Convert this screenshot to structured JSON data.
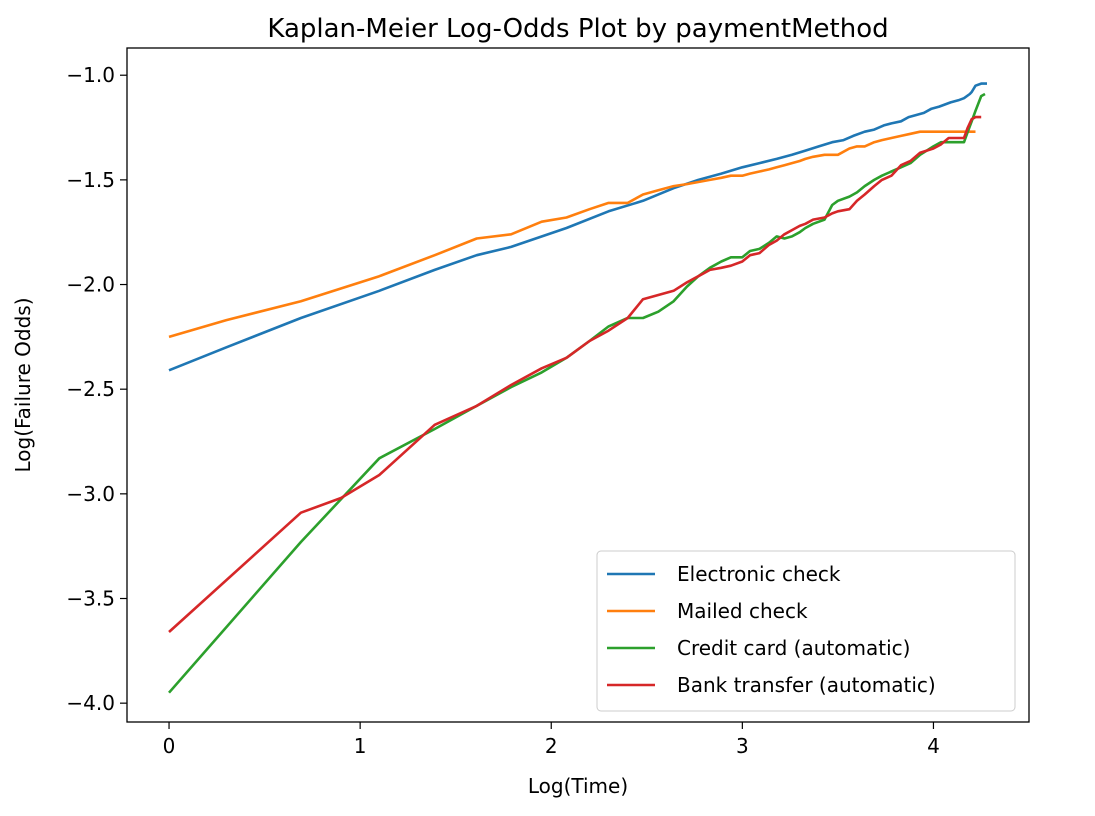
{
  "chart_data": {
    "type": "line",
    "title": "Kaplan-Meier Log-Odds Plot by paymentMethod",
    "xlabel": "Log(Time)",
    "ylabel": "Log(Failure Odds)",
    "xlim": [
      -0.22,
      4.5
    ],
    "ylim": [
      -4.09,
      -0.87
    ],
    "xticks": [
      0,
      1,
      2,
      3,
      4
    ],
    "xtick_labels": [
      "0",
      "1",
      "2",
      "3",
      "4"
    ],
    "yticks": [
      -1.0,
      -1.5,
      -2.0,
      -2.5,
      -3.0,
      -3.5,
      -4.0
    ],
    "ytick_labels": [
      "−1.0",
      "−1.5",
      "−2.0",
      "−2.5",
      "−3.0",
      "−3.5",
      "−4.0"
    ],
    "grid": false,
    "legend_position": "lower right",
    "series": [
      {
        "name": "Electronic check",
        "color": "#1f77b4",
        "x": [
          0,
          0.3,
          0.69,
          1.1,
          1.39,
          1.61,
          1.79,
          2.08,
          2.3,
          2.48,
          2.64,
          2.77,
          2.89,
          3.0,
          3.09,
          3.18,
          3.26,
          3.33,
          3.4,
          3.47,
          3.53,
          3.58,
          3.64,
          3.69,
          3.74,
          3.78,
          3.83,
          3.87,
          3.91,
          3.95,
          3.99,
          4.03,
          4.06,
          4.09,
          4.13,
          4.16,
          4.19,
          4.2,
          4.22,
          4.25,
          4.28
        ],
        "y": [
          -2.41,
          -2.3,
          -2.16,
          -2.03,
          -1.93,
          -1.86,
          -1.82,
          -1.73,
          -1.65,
          -1.6,
          -1.54,
          -1.5,
          -1.47,
          -1.44,
          -1.42,
          -1.4,
          -1.38,
          -1.36,
          -1.34,
          -1.32,
          -1.31,
          -1.29,
          -1.27,
          -1.26,
          -1.24,
          -1.23,
          -1.22,
          -1.2,
          -1.19,
          -1.18,
          -1.16,
          -1.15,
          -1.14,
          -1.13,
          -1.12,
          -1.11,
          -1.09,
          -1.08,
          -1.05,
          -1.04,
          -1.04
        ]
      },
      {
        "name": "Mailed check",
        "color": "#ff7f0e",
        "x": [
          0,
          0.3,
          0.69,
          1.1,
          1.39,
          1.61,
          1.79,
          1.95,
          2.08,
          2.2,
          2.3,
          2.4,
          2.48,
          2.56,
          2.64,
          2.71,
          2.77,
          2.83,
          2.89,
          2.94,
          3.0,
          3.04,
          3.09,
          3.14,
          3.18,
          3.22,
          3.26,
          3.3,
          3.33,
          3.37,
          3.43,
          3.5,
          3.56,
          3.6,
          3.64,
          3.69,
          3.73,
          3.78,
          3.83,
          3.88,
          3.93,
          4.0,
          4.06,
          4.12,
          4.18,
          4.2,
          4.22
        ],
        "y": [
          -2.25,
          -2.17,
          -2.08,
          -1.96,
          -1.86,
          -1.78,
          -1.76,
          -1.7,
          -1.68,
          -1.64,
          -1.61,
          -1.61,
          -1.57,
          -1.55,
          -1.53,
          -1.52,
          -1.51,
          -1.5,
          -1.49,
          -1.48,
          -1.48,
          -1.47,
          -1.46,
          -1.45,
          -1.44,
          -1.43,
          -1.42,
          -1.41,
          -1.4,
          -1.39,
          -1.38,
          -1.38,
          -1.35,
          -1.34,
          -1.34,
          -1.32,
          -1.31,
          -1.3,
          -1.29,
          -1.28,
          -1.27,
          -1.27,
          -1.27,
          -1.27,
          -1.27,
          -1.27,
          -1.27
        ]
      },
      {
        "name": "Credit card (automatic)",
        "color": "#2ca02c",
        "x": [
          0,
          0.69,
          1.1,
          1.39,
          1.61,
          1.79,
          1.95,
          2.08,
          2.2,
          2.3,
          2.4,
          2.48,
          2.56,
          2.64,
          2.71,
          2.77,
          2.83,
          2.89,
          2.94,
          3.0,
          3.04,
          3.09,
          3.14,
          3.18,
          3.22,
          3.26,
          3.3,
          3.33,
          3.37,
          3.43,
          3.47,
          3.5,
          3.56,
          3.6,
          3.64,
          3.69,
          3.73,
          3.78,
          3.83,
          3.88,
          3.93,
          4.0,
          4.04,
          4.08,
          4.12,
          4.16,
          4.18,
          4.2,
          4.22,
          4.25,
          4.27
        ],
        "y": [
          -3.95,
          -3.23,
          -2.83,
          -2.69,
          -2.58,
          -2.49,
          -2.42,
          -2.35,
          -2.27,
          -2.2,
          -2.16,
          -2.16,
          -2.13,
          -2.08,
          -2.01,
          -1.96,
          -1.92,
          -1.89,
          -1.87,
          -1.87,
          -1.84,
          -1.83,
          -1.8,
          -1.77,
          -1.78,
          -1.77,
          -1.75,
          -1.73,
          -1.71,
          -1.69,
          -1.62,
          -1.6,
          -1.58,
          -1.56,
          -1.53,
          -1.5,
          -1.48,
          -1.46,
          -1.44,
          -1.42,
          -1.38,
          -1.34,
          -1.32,
          -1.32,
          -1.32,
          -1.32,
          -1.27,
          -1.22,
          -1.17,
          -1.1,
          -1.09
        ]
      },
      {
        "name": "Bank transfer (automatic)",
        "color": "#d62728",
        "x": [
          0,
          0.69,
          0.9,
          1.1,
          1.39,
          1.61,
          1.79,
          1.95,
          2.08,
          2.2,
          2.3,
          2.4,
          2.48,
          2.56,
          2.64,
          2.71,
          2.77,
          2.83,
          2.89,
          2.94,
          3.0,
          3.04,
          3.09,
          3.14,
          3.18,
          3.22,
          3.26,
          3.3,
          3.33,
          3.37,
          3.43,
          3.47,
          3.5,
          3.56,
          3.6,
          3.64,
          3.69,
          3.73,
          3.78,
          3.83,
          3.88,
          3.93,
          4.0,
          4.04,
          4.08,
          4.12,
          4.16,
          4.18,
          4.2,
          4.22,
          4.25
        ],
        "y": [
          -3.66,
          -3.09,
          -3.02,
          -2.91,
          -2.67,
          -2.58,
          -2.48,
          -2.4,
          -2.35,
          -2.27,
          -2.22,
          -2.16,
          -2.07,
          -2.05,
          -2.03,
          -1.99,
          -1.96,
          -1.93,
          -1.92,
          -1.91,
          -1.89,
          -1.86,
          -1.85,
          -1.81,
          -1.79,
          -1.76,
          -1.74,
          -1.72,
          -1.71,
          -1.69,
          -1.68,
          -1.66,
          -1.65,
          -1.64,
          -1.6,
          -1.57,
          -1.53,
          -1.5,
          -1.48,
          -1.43,
          -1.41,
          -1.37,
          -1.35,
          -1.33,
          -1.3,
          -1.3,
          -1.3,
          -1.25,
          -1.21,
          -1.2,
          -1.2
        ]
      }
    ]
  }
}
